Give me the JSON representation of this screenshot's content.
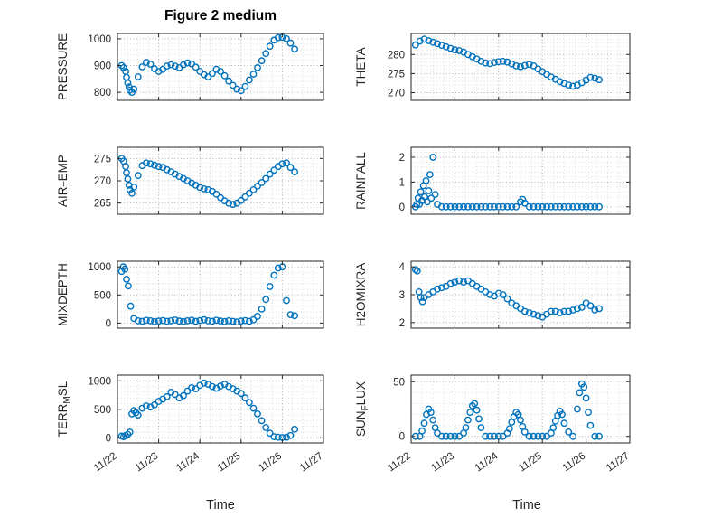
{
  "title": "Figure 2 medium",
  "xlabel": "Time",
  "chart_meta": {
    "marker_color": "#0072BD",
    "axis_color": "#262626",
    "grid_major_color": "#b0b0b0",
    "grid_minor_color": "#dddddd",
    "background": "#ffffff",
    "xlim": [
      22,
      27
    ],
    "xticks": [
      22,
      23,
      24,
      25,
      26,
      27
    ],
    "xtick_labels": [
      "11/22",
      "11/23",
      "11/24",
      "11/25",
      "11/26",
      "11/27"
    ],
    "x_minor_step": 0.25,
    "marker": "open-circle",
    "legend": "none",
    "grid": "on"
  },
  "chart_data": [
    {
      "id": "pressure",
      "name": "PRESSURE",
      "type": "scatter",
      "row": 0,
      "col": 0,
      "ylabel_parts": [
        {
          "t": "PRESSURE"
        }
      ],
      "ylim": [
        770,
        1020
      ],
      "yticks": [
        800,
        900,
        1000
      ],
      "y_minor": 20,
      "x": [
        22.1,
        22.15,
        22.2,
        22.22,
        22.25,
        22.28,
        22.3,
        22.35,
        22.4,
        22.5,
        22.6,
        22.7,
        22.8,
        22.9,
        23.0,
        23.1,
        23.2,
        23.3,
        23.4,
        23.5,
        23.6,
        23.7,
        23.8,
        23.9,
        24.0,
        24.1,
        24.2,
        24.3,
        24.4,
        24.5,
        24.6,
        24.7,
        24.8,
        24.9,
        25.0,
        25.1,
        25.2,
        25.3,
        25.4,
        25.5,
        25.6,
        25.7,
        25.8,
        25.9,
        26.0,
        26.1,
        26.2,
        26.3
      ],
      "y": [
        900,
        892,
        878,
        856,
        835,
        820,
        808,
        800,
        812,
        858,
        895,
        912,
        905,
        888,
        878,
        886,
        898,
        903,
        898,
        892,
        903,
        910,
        906,
        894,
        878,
        866,
        858,
        870,
        886,
        878,
        862,
        842,
        826,
        812,
        806,
        822,
        846,
        868,
        892,
        918,
        945,
        972,
        995,
        1004,
        1005,
        1000,
        984,
        962
      ]
    },
    {
      "id": "theta",
      "name": "THETA",
      "type": "scatter",
      "row": 0,
      "col": 1,
      "ylabel_parts": [
        {
          "t": "THETA"
        }
      ],
      "ylim": [
        268,
        285.5
      ],
      "yticks": [
        270,
        275,
        280
      ],
      "y_minor": 1,
      "x": [
        22.1,
        22.2,
        22.3,
        22.4,
        22.5,
        22.6,
        22.7,
        22.8,
        22.9,
        23.0,
        23.1,
        23.2,
        23.3,
        23.4,
        23.5,
        23.6,
        23.7,
        23.8,
        23.9,
        24.0,
        24.1,
        24.2,
        24.3,
        24.4,
        24.5,
        24.6,
        24.7,
        24.8,
        24.9,
        25.0,
        25.1,
        25.2,
        25.3,
        25.4,
        25.5,
        25.6,
        25.7,
        25.8,
        25.9,
        26.0,
        26.1,
        26.2,
        26.3
      ],
      "y": [
        282.5,
        283.5,
        284.0,
        283.6,
        283.2,
        282.8,
        282.4,
        282.0,
        281.6,
        281.2,
        281.0,
        280.6,
        280.0,
        279.4,
        278.8,
        278.2,
        277.8,
        277.6,
        277.9,
        278.1,
        278.2,
        278.0,
        277.5,
        277.0,
        276.8,
        277.1,
        277.4,
        277.0,
        276.2,
        275.5,
        274.8,
        274.1,
        273.5,
        272.9,
        272.4,
        272.0,
        271.7,
        272.0,
        272.6,
        273.3,
        274.0,
        273.8,
        273.4
      ]
    },
    {
      "id": "airtemp",
      "name": "AIR_TEMP",
      "type": "scatter",
      "row": 1,
      "col": 0,
      "ylabel_parts": [
        {
          "t": "AIR"
        },
        {
          "t": "T",
          "sub": true
        },
        {
          "t": "EMP"
        }
      ],
      "ylim": [
        262.5,
        277.5
      ],
      "yticks": [
        265,
        270,
        275
      ],
      "y_minor": 1,
      "x": [
        22.1,
        22.15,
        22.2,
        22.22,
        22.25,
        22.28,
        22.3,
        22.35,
        22.4,
        22.5,
        22.6,
        22.7,
        22.8,
        22.9,
        23.0,
        23.1,
        23.2,
        23.3,
        23.4,
        23.5,
        23.6,
        23.7,
        23.8,
        23.9,
        24.0,
        24.1,
        24.2,
        24.3,
        24.4,
        24.5,
        24.6,
        24.7,
        24.8,
        24.9,
        25.0,
        25.1,
        25.2,
        25.3,
        25.4,
        25.5,
        25.6,
        25.7,
        25.8,
        25.9,
        26.0,
        26.1,
        26.2,
        26.3
      ],
      "y": [
        275.0,
        274.4,
        273.2,
        271.8,
        270.4,
        269.0,
        268.0,
        267.2,
        268.6,
        271.2,
        273.4,
        274.0,
        273.8,
        273.5,
        273.2,
        273.0,
        272.5,
        272.0,
        271.5,
        271.0,
        270.5,
        270.0,
        269.5,
        269.0,
        268.5,
        268.2,
        268.0,
        267.6,
        267.0,
        266.2,
        265.5,
        265.0,
        264.7,
        265.0,
        265.6,
        266.4,
        267.2,
        268.0,
        268.8,
        269.6,
        270.5,
        271.5,
        272.4,
        273.2,
        273.8,
        274.0,
        273.0,
        272.0
      ]
    },
    {
      "id": "rainfall",
      "name": "RAINFALL",
      "type": "scatter",
      "row": 1,
      "col": 1,
      "ylabel_parts": [
        {
          "t": "RAINFALL"
        }
      ],
      "ylim": [
        -0.3,
        2.4
      ],
      "yticks": [
        0,
        1,
        2
      ],
      "y_minor": 0.2,
      "x": [
        22.1,
        22.13,
        22.16,
        22.19,
        22.22,
        22.25,
        22.28,
        22.31,
        22.34,
        22.37,
        22.4,
        22.43,
        22.46,
        22.5,
        22.55,
        22.6,
        22.7,
        22.8,
        22.9,
        23.0,
        23.1,
        23.2,
        23.3,
        23.4,
        23.5,
        23.6,
        23.7,
        23.8,
        23.9,
        24.0,
        24.1,
        24.2,
        24.3,
        24.4,
        24.5,
        24.55,
        24.6,
        24.7,
        24.8,
        24.9,
        25.0,
        25.1,
        25.2,
        25.3,
        25.4,
        25.5,
        25.6,
        25.7,
        25.8,
        25.9,
        26.0,
        26.1,
        26.2,
        26.3
      ],
      "y": [
        0,
        0.1,
        0.35,
        0.1,
        0.6,
        0.25,
        0.85,
        0.4,
        1.05,
        0.2,
        0.65,
        1.3,
        0.35,
        2.0,
        0.5,
        0.1,
        0,
        0,
        0,
        0,
        0,
        0,
        0,
        0,
        0,
        0,
        0,
        0,
        0,
        0,
        0,
        0,
        0,
        0,
        0.2,
        0.3,
        0.15,
        0,
        0,
        0,
        0,
        0,
        0,
        0,
        0,
        0,
        0,
        0,
        0,
        0,
        0,
        0,
        0,
        0
      ]
    },
    {
      "id": "mixdepth",
      "name": "MIXDEPTH",
      "type": "scatter",
      "row": 2,
      "col": 0,
      "ylabel_parts": [
        {
          "t": "MIXDEPTH"
        }
      ],
      "ylim": [
        -90,
        1100
      ],
      "yticks": [
        0,
        500,
        1000
      ],
      "y_minor": 100,
      "x": [
        22.1,
        22.14,
        22.18,
        22.22,
        22.26,
        22.32,
        22.4,
        22.5,
        22.6,
        22.7,
        22.8,
        22.9,
        23.0,
        23.1,
        23.2,
        23.3,
        23.4,
        23.5,
        23.6,
        23.7,
        23.8,
        23.9,
        24.0,
        24.1,
        24.2,
        24.3,
        24.4,
        24.5,
        24.6,
        24.7,
        24.8,
        24.9,
        25.0,
        25.1,
        25.2,
        25.3,
        25.4,
        25.5,
        25.6,
        25.7,
        25.8,
        25.9,
        26.0,
        26.1,
        26.2,
        26.3
      ],
      "y": [
        920,
        1000,
        960,
        780,
        660,
        300,
        80,
        40,
        30,
        50,
        40,
        25,
        35,
        45,
        30,
        40,
        55,
        35,
        25,
        40,
        50,
        30,
        45,
        60,
        40,
        30,
        50,
        35,
        25,
        40,
        30,
        20,
        35,
        45,
        30,
        60,
        120,
        250,
        420,
        650,
        850,
        980,
        1000,
        400,
        150,
        130
      ]
    },
    {
      "id": "h2omixra",
      "name": "H2OMIXRA",
      "type": "scatter",
      "row": 2,
      "col": 1,
      "ylabel_parts": [
        {
          "t": "H2OMIXRA"
        }
      ],
      "ylim": [
        1.8,
        4.2
      ],
      "yticks": [
        2,
        3,
        4
      ],
      "y_minor": 0.2,
      "x": [
        22.1,
        22.14,
        22.18,
        22.22,
        22.26,
        22.3,
        22.4,
        22.5,
        22.6,
        22.7,
        22.8,
        22.9,
        23.0,
        23.1,
        23.2,
        23.3,
        23.4,
        23.5,
        23.6,
        23.7,
        23.8,
        23.9,
        24.0,
        24.1,
        24.2,
        24.3,
        24.4,
        24.5,
        24.6,
        24.7,
        24.8,
        24.9,
        25.0,
        25.1,
        25.2,
        25.3,
        25.4,
        25.5,
        25.6,
        25.7,
        25.8,
        25.9,
        26.0,
        26.1,
        26.2,
        26.3
      ],
      "y": [
        3.9,
        3.85,
        3.1,
        2.9,
        2.75,
        2.9,
        3.0,
        3.1,
        3.2,
        3.25,
        3.3,
        3.4,
        3.45,
        3.5,
        3.45,
        3.5,
        3.4,
        3.3,
        3.2,
        3.1,
        3.0,
        2.95,
        3.05,
        3.0,
        2.85,
        2.7,
        2.6,
        2.5,
        2.4,
        2.35,
        2.3,
        2.25,
        2.2,
        2.3,
        2.4,
        2.4,
        2.35,
        2.4,
        2.4,
        2.45,
        2.5,
        2.55,
        2.7,
        2.6,
        2.45,
        2.5
      ]
    },
    {
      "id": "terrmsl",
      "name": "TERR_MSL",
      "type": "scatter",
      "row": 3,
      "col": 0,
      "ylabel_parts": [
        {
          "t": "TERR"
        },
        {
          "t": "M",
          "sub": true
        },
        {
          "t": "SL"
        }
      ],
      "ylim": [
        -90,
        1100
      ],
      "yticks": [
        0,
        500,
        1000
      ],
      "y_minor": 100,
      "x": [
        22.1,
        22.15,
        22.2,
        22.25,
        22.3,
        22.35,
        22.4,
        22.45,
        22.5,
        22.6,
        22.7,
        22.8,
        22.9,
        23.0,
        23.1,
        23.2,
        23.3,
        23.4,
        23.5,
        23.6,
        23.7,
        23.8,
        23.9,
        24.0,
        24.1,
        24.2,
        24.3,
        24.4,
        24.5,
        24.6,
        24.7,
        24.8,
        24.9,
        25.0,
        25.1,
        25.2,
        25.3,
        25.4,
        25.5,
        25.6,
        25.7,
        25.8,
        25.9,
        26.0,
        26.1,
        26.2,
        26.3
      ],
      "y": [
        30,
        20,
        40,
        60,
        100,
        420,
        480,
        440,
        400,
        520,
        560,
        540,
        580,
        640,
        680,
        720,
        800,
        760,
        700,
        740,
        820,
        880,
        860,
        920,
        960,
        940,
        900,
        870,
        910,
        940,
        900,
        860,
        820,
        780,
        700,
        620,
        520,
        420,
        300,
        180,
        80,
        20,
        10,
        5,
        10,
        40,
        150
      ]
    },
    {
      "id": "sunflux",
      "name": "SUN_FLUX",
      "type": "scatter",
      "row": 3,
      "col": 1,
      "ylabel_parts": [
        {
          "t": "SUN"
        },
        {
          "t": "F",
          "sub": true
        },
        {
          "t": "LUX"
        }
      ],
      "ylim": [
        -6,
        56
      ],
      "yticks": [
        0,
        50
      ],
      "y_minor": 10,
      "x": [
        22.1,
        22.2,
        22.25,
        22.3,
        22.35,
        22.4,
        22.45,
        22.5,
        22.55,
        22.6,
        22.7,
        22.8,
        22.9,
        23.0,
        23.1,
        23.2,
        23.25,
        23.3,
        23.35,
        23.4,
        23.45,
        23.5,
        23.55,
        23.6,
        23.7,
        23.8,
        23.9,
        24.0,
        24.1,
        24.2,
        24.25,
        24.3,
        24.35,
        24.4,
        24.45,
        24.5,
        24.55,
        24.6,
        24.7,
        24.8,
        24.9,
        25.0,
        25.1,
        25.2,
        25.25,
        25.3,
        25.35,
        25.4,
        25.45,
        25.5,
        25.6,
        25.7,
        25.8,
        25.85,
        25.9,
        25.95,
        26.0,
        26.05,
        26.1,
        26.2,
        26.3
      ],
      "y": [
        0,
        0,
        5,
        12,
        20,
        25,
        22,
        15,
        8,
        3,
        0,
        0,
        0,
        0,
        0,
        3,
        8,
        15,
        22,
        28,
        30,
        24,
        16,
        8,
        0,
        0,
        0,
        0,
        0,
        3,
        7,
        13,
        18,
        22,
        20,
        15,
        9,
        4,
        0,
        0,
        0,
        0,
        0,
        3,
        8,
        14,
        19,
        23,
        20,
        12,
        4,
        0,
        25,
        40,
        48,
        45,
        35,
        22,
        10,
        0,
        0
      ]
    }
  ]
}
